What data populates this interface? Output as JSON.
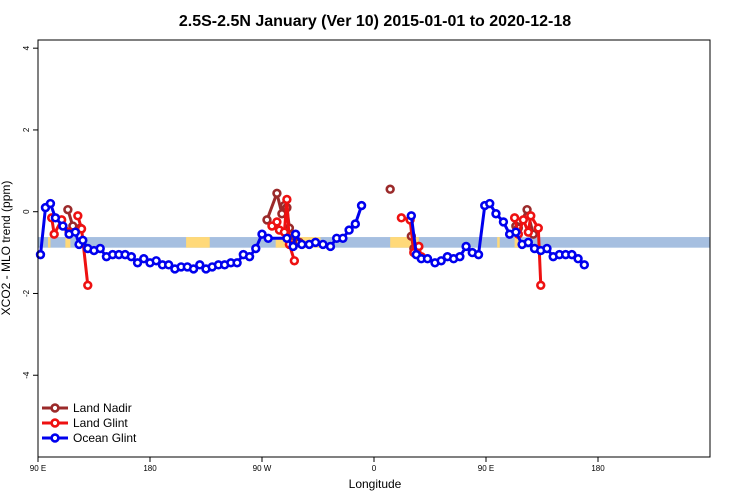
{
  "chart_data": {
    "type": "line",
    "title": "2.5S-2.5N January (Ver 10)   2015-01-01 to 2020-12-18",
    "xlabel": "Longitude",
    "ylabel": "XCO2 - MLO trend (ppm)",
    "xlim": [
      -90,
      450
    ],
    "ylim": [
      -6,
      4.2
    ],
    "x_ticks": [
      {
        "value": -90,
        "label": "90 E"
      },
      {
        "value": 0,
        "label": "180"
      },
      {
        "value": 90,
        "label": "90 W"
      },
      {
        "value": 180,
        "label": "0"
      },
      {
        "value": 270,
        "label": "90 E"
      },
      {
        "value": 360,
        "label": "180"
      }
    ],
    "y_ticks": [
      {
        "value": -4,
        "label": "-4"
      },
      {
        "value": -2,
        "label": "-2"
      },
      {
        "value": 0,
        "label": "0"
      },
      {
        "value": 2,
        "label": "2"
      },
      {
        "value": 4,
        "label": "4"
      }
    ],
    "legend_position": "bottom-left",
    "land_band": {
      "y_range": [
        -0.88,
        -0.62
      ],
      "base_color": "#a6bfe0",
      "land_color": "#ffd979",
      "land_segments": [
        [
          -82,
          -80
        ],
        [
          -68,
          -64
        ],
        [
          29,
          48
        ],
        [
          101,
          137
        ],
        [
          193,
          216
        ],
        [
          279,
          281
        ],
        [
          293,
          297
        ]
      ]
    },
    "series": [
      {
        "name": "Land Nadir",
        "color": "#9b2a2a",
        "segments": [
          [
            [
              -66,
              0.05
            ],
            [
              -62,
              -0.35
            ],
            [
              -56,
              -0.4
            ]
          ],
          [
            [
              94,
              -0.2
            ],
            [
              102,
              0.45
            ],
            [
              106,
              -0.05
            ],
            [
              108,
              0.15
            ],
            [
              110,
              0.1
            ],
            [
              112,
              -0.4
            ],
            [
              116,
              -0.6
            ],
            [
              120,
              -0.75
            ]
          ],
          [
            [
              193,
              0.55
            ]
          ],
          [
            [
              210,
              -0.6
            ],
            [
              212,
              -0.9
            ],
            [
              214,
              -0.95
            ],
            [
              216,
              -0.85
            ]
          ],
          [
            [
              294,
              -0.35
            ],
            [
              296,
              -0.4
            ],
            [
              303,
              0.05
            ],
            [
              308,
              -0.55
            ]
          ]
        ]
      },
      {
        "name": "Land Glint",
        "color": "#ee1111",
        "segments": [
          [
            [
              -79,
              -0.15
            ],
            [
              -77,
              -0.55
            ],
            [
              -71,
              -0.2
            ],
            [
              -65,
              -0.5
            ]
          ],
          [
            [
              -58,
              -0.1
            ],
            [
              -55,
              -0.42
            ],
            [
              -50,
              -1.8
            ]
          ],
          [
            [
              98,
              -0.35
            ],
            [
              102,
              -0.25
            ],
            [
              104,
              -0.45
            ],
            [
              108,
              -0.5
            ],
            [
              110,
              0.3
            ],
            [
              112,
              -0.8
            ],
            [
              116,
              -1.2
            ]
          ],
          [
            [
              202,
              -0.15
            ],
            [
              209,
              -0.2
            ],
            [
              212,
              -1.0
            ],
            [
              216,
              -0.85
            ],
            [
              218,
              -1.1
            ]
          ],
          [
            [
              293,
              -0.15
            ],
            [
              296,
              -0.55
            ],
            [
              300,
              -0.2
            ],
            [
              304,
              -0.5
            ],
            [
              306,
              -0.1
            ],
            [
              312,
              -0.4
            ],
            [
              314,
              -1.8
            ]
          ]
        ]
      },
      {
        "name": "Ocean Glint",
        "color": "#0000ee",
        "segments": [
          [
            [
              -88,
              -1.05
            ],
            [
              -84,
              0.1
            ],
            [
              -80,
              0.2
            ],
            [
              -76,
              -0.15
            ],
            [
              -70,
              -0.35
            ],
            [
              -65,
              -0.55
            ],
            [
              -60,
              -0.5
            ],
            [
              -57,
              -0.8
            ],
            [
              -54,
              -0.7
            ],
            [
              -50,
              -0.9
            ],
            [
              -45,
              -0.95
            ],
            [
              -40,
              -0.9
            ],
            [
              -35,
              -1.1
            ],
            [
              -30,
              -1.05
            ],
            [
              -25,
              -1.05
            ],
            [
              -20,
              -1.05
            ],
            [
              -15,
              -1.1
            ],
            [
              -10,
              -1.25
            ],
            [
              -5,
              -1.15
            ],
            [
              0,
              -1.25
            ],
            [
              5,
              -1.2
            ],
            [
              10,
              -1.3
            ],
            [
              15,
              -1.3
            ],
            [
              20,
              -1.4
            ],
            [
              25,
              -1.35
            ],
            [
              30,
              -1.35
            ],
            [
              35,
              -1.4
            ],
            [
              40,
              -1.3
            ],
            [
              45,
              -1.4
            ],
            [
              50,
              -1.35
            ],
            [
              55,
              -1.3
            ],
            [
              60,
              -1.3
            ],
            [
              65,
              -1.25
            ],
            [
              70,
              -1.25
            ],
            [
              75,
              -1.05
            ],
            [
              80,
              -1.1
            ],
            [
              85,
              -0.9
            ],
            [
              90,
              -0.55
            ],
            [
              95,
              -0.65
            ],
            [
              110,
              -0.65
            ],
            [
              115,
              -0.85
            ],
            [
              117,
              -0.55
            ],
            [
              122,
              -0.8
            ],
            [
              128,
              -0.8
            ],
            [
              133,
              -0.75
            ],
            [
              139,
              -0.8
            ],
            [
              145,
              -0.85
            ],
            [
              150,
              -0.65
            ],
            [
              155,
              -0.65
            ],
            [
              160,
              -0.45
            ],
            [
              165,
              -0.3
            ],
            [
              170,
              0.15
            ]
          ],
          [
            [
              210,
              -0.1
            ],
            [
              214,
              -1.05
            ],
            [
              218,
              -1.15
            ],
            [
              223,
              -1.15
            ],
            [
              229,
              -1.25
            ],
            [
              234,
              -1.2
            ],
            [
              239,
              -1.1
            ],
            [
              244,
              -1.15
            ],
            [
              249,
              -1.1
            ],
            [
              254,
              -0.85
            ],
            [
              259,
              -1.0
            ],
            [
              264,
              -1.05
            ],
            [
              269,
              0.15
            ],
            [
              273,
              0.2
            ],
            [
              278,
              -0.05
            ],
            [
              284,
              -0.25
            ],
            [
              289,
              -0.55
            ],
            [
              294,
              -0.5
            ],
            [
              299,
              -0.8
            ],
            [
              304,
              -0.75
            ],
            [
              309,
              -0.9
            ],
            [
              314,
              -0.95
            ],
            [
              319,
              -0.9
            ],
            [
              324,
              -1.1
            ],
            [
              329,
              -1.05
            ],
            [
              334,
              -1.05
            ],
            [
              339,
              -1.05
            ],
            [
              344,
              -1.15
            ],
            [
              349,
              -1.3
            ]
          ]
        ]
      }
    ]
  }
}
